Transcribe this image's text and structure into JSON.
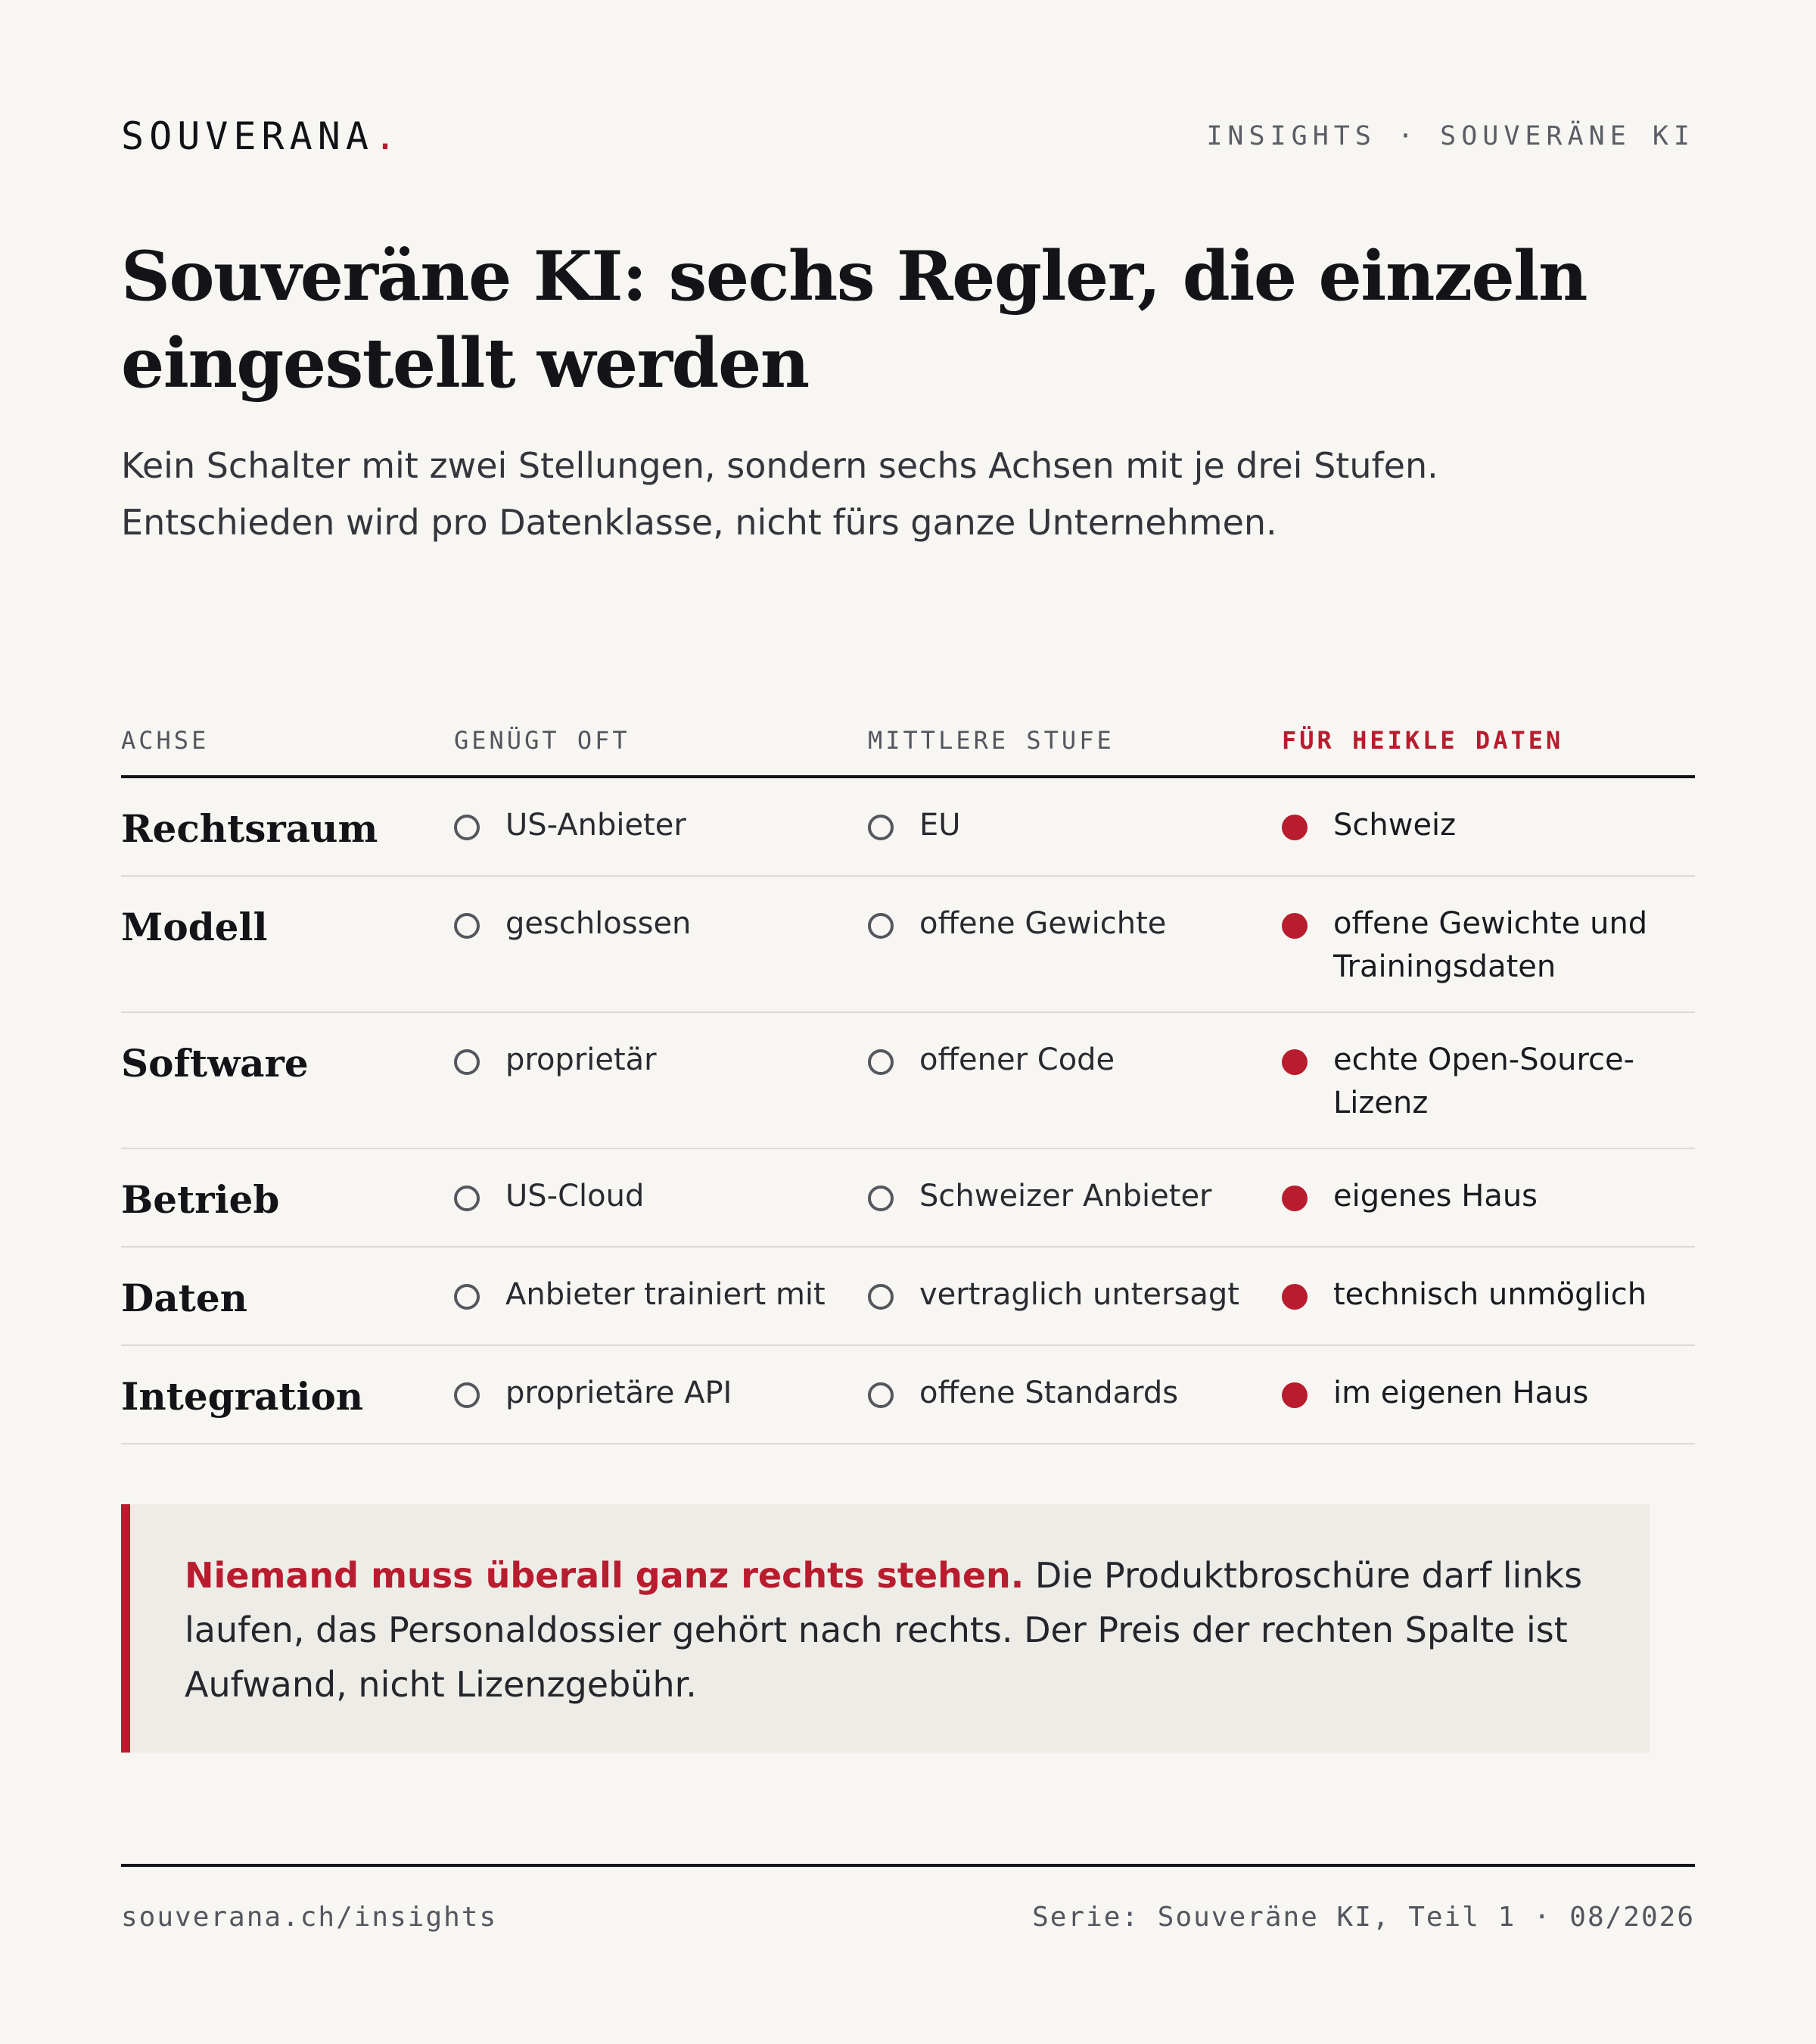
{
  "header": {
    "brand": "SOUVERANA",
    "brand_dot": ".",
    "section": "INSIGHTS · SOUVERÄNE KI"
  },
  "title": "Souveräne KI: sechs Regler, die einzeln eingestellt werden",
  "subtitle_lines": [
    "Kein Schalter mit zwei Stellungen, sondern sechs Achsen mit je drei Stufen.",
    "Entschieden wird pro Datenklasse, nicht fürs ganze Unternehmen."
  ],
  "table": {
    "headers": [
      "ACHSE",
      "GENÜGT OFT",
      "MITTLERE STUFE",
      "FÜR HEIKLE DATEN"
    ],
    "rows": [
      {
        "axis": "Rechtsraum",
        "low": "US-Anbieter",
        "mid": "EU",
        "high": "Schweiz"
      },
      {
        "axis": "Modell",
        "low": "geschlossen",
        "mid": "offene Gewichte",
        "high": "offene Gewichte und Trainingsdaten"
      },
      {
        "axis": "Software",
        "low": "proprietär",
        "mid": "offener Code",
        "high": "echte Open-Source-Lizenz"
      },
      {
        "axis": "Betrieb",
        "low": "US-Cloud",
        "mid": "Schweizer Anbieter",
        "high": "eigenes Haus"
      },
      {
        "axis": "Daten",
        "low": "Anbieter trainiert mit",
        "mid": "vertraglich untersagt",
        "high": "technisch unmöglich"
      },
      {
        "axis": "Integration",
        "low": "proprietäre API",
        "mid": "offene Standards",
        "high": "im eigenen Haus"
      }
    ]
  },
  "callout": {
    "lead": "Niemand muss überall ganz rechts stehen.",
    "body": " Die Produktbroschüre darf links laufen, das Personaldossier gehört nach rechts. Der Preis der rechten Spalte ist Aufwand, nicht Lizenzgebühr."
  },
  "footer": {
    "url": "souverana.ch/insights",
    "series": "Serie: Souveräne KI, Teil 1 · 08/2026"
  },
  "colors": {
    "accent": "#b81c2e",
    "background": "#f7f6f2",
    "callout_bg": "#eeece7",
    "text": "#141418"
  }
}
